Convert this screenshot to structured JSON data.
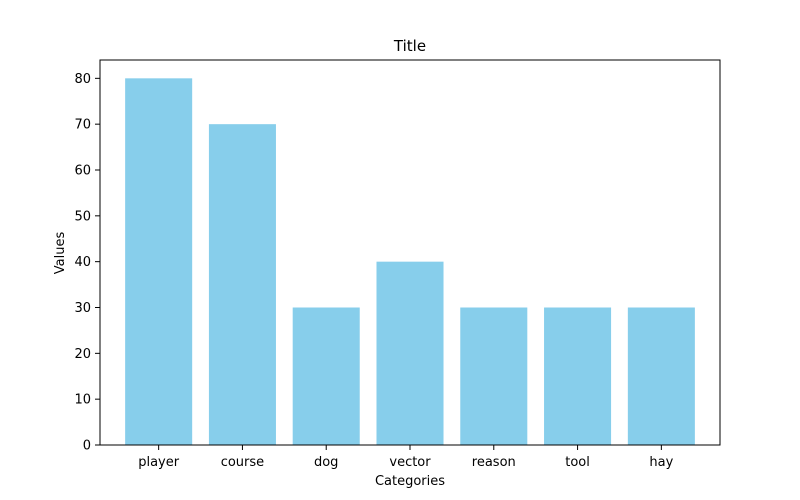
{
  "chart_data": {
    "type": "bar",
    "title": "Title",
    "xlabel": "Categories",
    "ylabel": "Values",
    "categories": [
      "player",
      "course",
      "dog",
      "vector",
      "reason",
      "tool",
      "hay"
    ],
    "values": [
      80,
      70,
      30,
      40,
      30,
      30,
      30
    ],
    "ylim": [
      0,
      84
    ],
    "yticks": [
      0,
      10,
      20,
      30,
      40,
      50,
      60,
      70,
      80
    ],
    "bar_color": "#87CEEB",
    "grid": false,
    "legend": "none"
  }
}
